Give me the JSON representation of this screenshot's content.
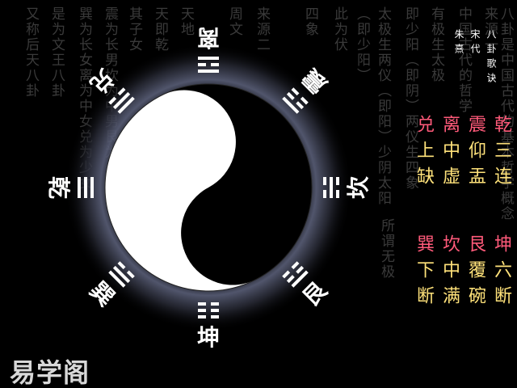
{
  "background_text": [
    "又称后天八卦",
    "是为文王八卦",
    "巽为长女离为中女兑为少女",
    "震为长男坎为中男艮为少男",
    "其子女",
    "天即乾",
    "天地",
    "周文",
    "来源二",
    "四象",
    "此为伏",
    "（即少阳）",
    "太极生两仪（即阳）少阴太阳",
    "即少阳（即阴）两仪生四象",
    "有极生太极",
    "中国古代的哲学",
    "来源一",
    "八卦是中国古代的基本哲学概念",
    "所谓无极"
  ],
  "header": {
    "title": "八卦歌诀",
    "dynasty": "宋代",
    "author": "朱熹"
  },
  "verses": [
    {
      "name": "乾",
      "rest": "三连",
      "tone": "c1"
    },
    {
      "name": "震",
      "rest": "仰盂",
      "tone": "c1"
    },
    {
      "name": "离",
      "rest": "中虚",
      "tone": "c1"
    },
    {
      "name": "兑",
      "rest": "上缺",
      "tone": "c1"
    },
    {
      "name": "坤",
      "rest": "六断",
      "tone": "c2"
    },
    {
      "name": "艮",
      "rest": "覆碗",
      "tone": "c2"
    },
    {
      "name": "坎",
      "rest": "中满",
      "tone": "c2"
    },
    {
      "name": "巽",
      "rest": "下断",
      "tone": "c2"
    }
  ],
  "trigrams": [
    {
      "name": "离",
      "lines": [
        1,
        0,
        1
      ]
    },
    {
      "name": "震",
      "lines": [
        0,
        0,
        1
      ]
    },
    {
      "name": "坎",
      "lines": [
        0,
        1,
        0
      ]
    },
    {
      "name": "艮",
      "lines": [
        1,
        0,
        0
      ]
    },
    {
      "name": "坤",
      "lines": [
        0,
        0,
        0
      ]
    },
    {
      "name": "巽",
      "lines": [
        1,
        1,
        0
      ]
    },
    {
      "name": "乾",
      "lines": [
        1,
        1,
        1
      ]
    },
    {
      "name": "兑",
      "lines": [
        0,
        1,
        1
      ]
    }
  ],
  "logo": "易学阁",
  "colors": {
    "yin": "#000000",
    "yang": "#ffffff",
    "glow": "#4b4f66",
    "verse_pink": "#ff5a7a",
    "verse_yellow": "#ffe27a"
  }
}
